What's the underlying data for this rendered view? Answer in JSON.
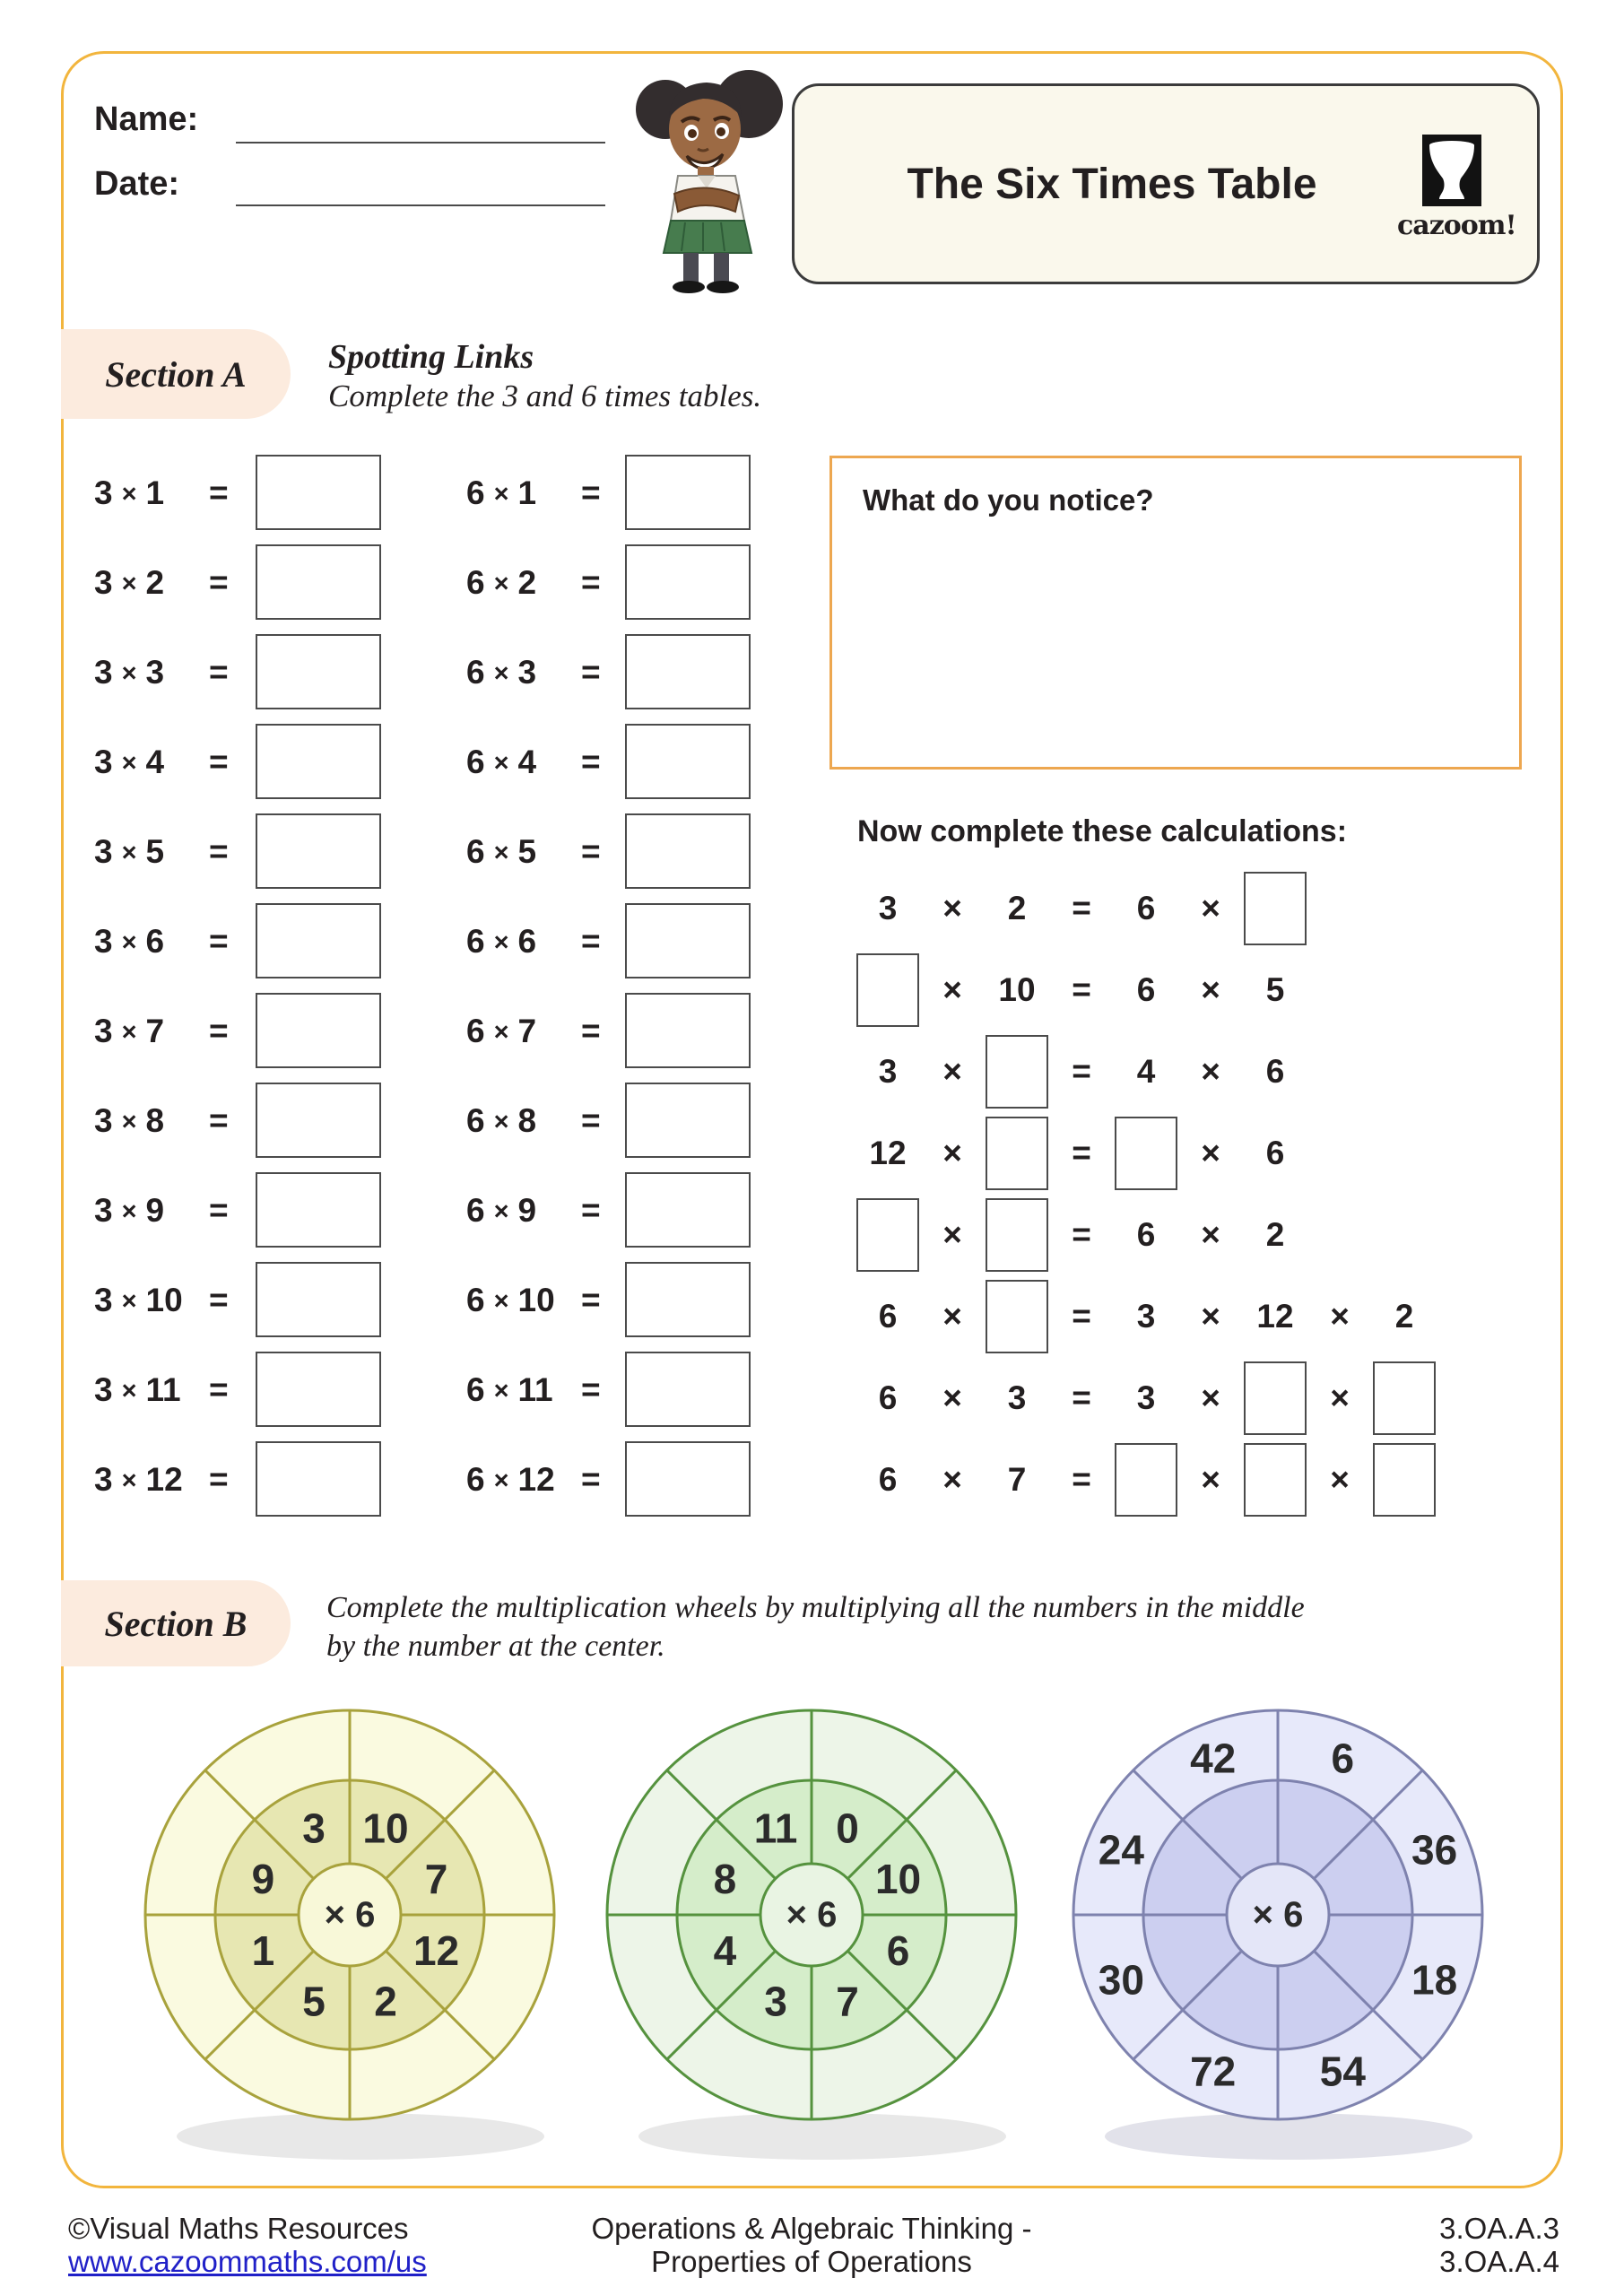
{
  "header": {
    "name_label": "Name:",
    "date_label": "Date:",
    "title": "The Six Times Table",
    "logo_text": "cazoom!"
  },
  "section_a": {
    "label": "Section A",
    "heading": "Spotting Links",
    "instruction": "Complete the 3 and 6 times tables.",
    "times_tables": {
      "times_symbol": "×",
      "equals_symbol": "=",
      "left_factor": "3",
      "right_factor": "6",
      "multipliers": [
        1,
        2,
        3,
        4,
        5,
        6,
        7,
        8,
        9,
        10,
        11,
        12
      ]
    },
    "notice_box": {
      "prompt": "What do you notice?"
    },
    "calculations": {
      "heading": "Now complete these calculations:",
      "box_token": "[]",
      "rows": [
        [
          "3",
          "×",
          "2",
          "=",
          "6",
          "×",
          "[]"
        ],
        [
          "[]",
          "×",
          "10",
          "=",
          "6",
          "×",
          "5"
        ],
        [
          "3",
          "×",
          "[]",
          "=",
          "4",
          "×",
          "6"
        ],
        [
          "12",
          "×",
          "[]",
          "=",
          "[]",
          "×",
          "6"
        ],
        [
          "[]",
          "×",
          "[]",
          "=",
          "6",
          "×",
          "2"
        ],
        [
          "6",
          "×",
          "[]",
          "=",
          "3",
          "×",
          "12",
          "×",
          "2"
        ],
        [
          "6",
          "×",
          "3",
          "=",
          "3",
          "×",
          "[]",
          "×",
          "[]"
        ],
        [
          "6",
          "×",
          "7",
          "=",
          "[]",
          "×",
          "[]",
          "×",
          "[]"
        ]
      ]
    }
  },
  "section_b": {
    "label": "Section B",
    "instruction_line1": "Complete the multiplication wheels by multiplying all the numbers in the middle",
    "instruction_line2": "by the number at the center.",
    "wheel_number_order": "clockwise from just right of top",
    "wheels": [
      {
        "center_label": "× 6",
        "numbers_ring": "middle",
        "numbers": [
          10,
          7,
          12,
          2,
          5,
          1,
          9,
          3
        ],
        "outer_color": "#FAFAE0",
        "middle_color": "#E7E7B2",
        "inner_color": "#F8F8D8",
        "stroke_color": "#A8A23C",
        "shadow_color": "#E8E8E8"
      },
      {
        "center_label": "× 6",
        "numbers_ring": "middle",
        "numbers": [
          0,
          10,
          6,
          7,
          3,
          4,
          8,
          11
        ],
        "outer_color": "#EDF5E8",
        "middle_color": "#D5EDCA",
        "inner_color": "#E9F4E3",
        "stroke_color": "#55923E",
        "shadow_color": "#E8E8E8"
      },
      {
        "center_label": "× 6",
        "numbers_ring": "outer",
        "numbers": [
          6,
          36,
          18,
          54,
          72,
          30,
          24,
          42
        ],
        "outer_color": "#E7E9FA",
        "middle_color": "#CCCFF0",
        "inner_color": "#E4E6F8",
        "stroke_color": "#7E82AE",
        "shadow_color": "#E2E2EA"
      }
    ]
  },
  "footer": {
    "copyright": "©Visual Maths Resources",
    "link": "www.cazoommaths.com/us",
    "center_line1": "Operations & Algebraic Thinking -",
    "center_line2": "Properties of Operations",
    "standard1": "3.OA.A.3",
    "standard2": "3.OA.A.4"
  },
  "colors": {
    "frame_gold": "#F2B53D",
    "pill_peach": "#FCEBDE",
    "notice_orange": "#EDA750",
    "box_stroke": "#4b4b4b",
    "link_blue": "#2020C8",
    "text": "#231f20"
  }
}
